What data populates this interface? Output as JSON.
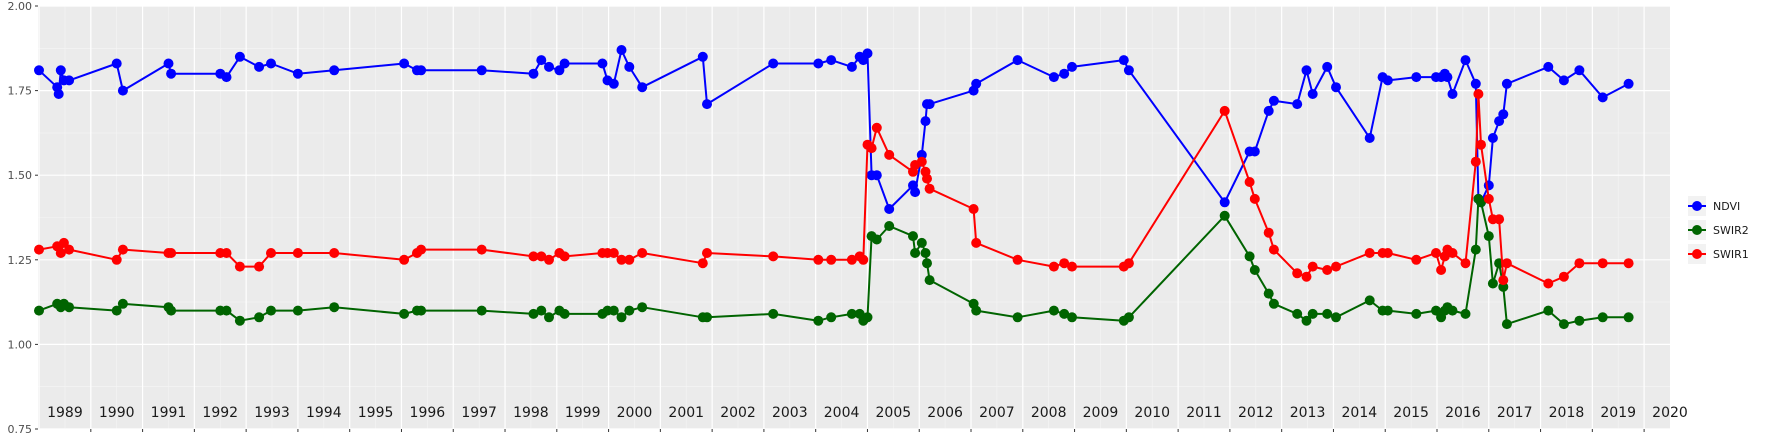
{
  "chart_data": {
    "type": "line",
    "title": "",
    "xlabel": "",
    "ylabel": "",
    "xlim": [
      1988.98,
      2020.5
    ],
    "ylim": [
      0.75,
      2.0
    ],
    "yticks": [
      "0.75",
      "1.00",
      "1.25",
      "1.50",
      "1.75",
      "2.00"
    ],
    "xticks": [
      "1989",
      "1990",
      "1991",
      "1992",
      "1993",
      "1994",
      "1995",
      "1996",
      "1997",
      "1998",
      "1999",
      "2000",
      "2001",
      "2002",
      "2003",
      "2004",
      "2005",
      "2006",
      "2007",
      "2008",
      "2009",
      "2010",
      "2011",
      "2012",
      "2013",
      "2014",
      "2015",
      "2016",
      "2017",
      "2018",
      "2019",
      "2020"
    ],
    "grid": true,
    "legend_position": "right",
    "series": [
      {
        "name": "NDVI",
        "color": "#0000ff",
        "x": [
          1989.0,
          1989.35,
          1989.38,
          1989.42,
          1989.48,
          1989.58,
          1990.5,
          1990.62,
          1991.5,
          1991.55,
          1992.5,
          1992.62,
          1992.88,
          1993.25,
          1993.48,
          1994.0,
          1994.7,
          1996.05,
          1996.3,
          1996.38,
          1997.55,
          1998.55,
          1998.7,
          1998.85,
          1999.05,
          1999.15,
          1999.88,
          1999.98,
          2000.1,
          2000.25,
          2000.4,
          2000.65,
          2001.82,
          2001.9,
          2003.18,
          2004.05,
          2004.3,
          2004.7,
          2004.85,
          2004.92,
          2005.0,
          2005.08,
          2005.18,
          2005.42,
          2005.88,
          2005.92,
          2006.05,
          2006.12,
          2006.15,
          2006.2,
          2007.05,
          2007.1,
          2007.9,
          2008.6,
          2008.8,
          2008.95,
          2009.95,
          2010.05,
          2011.9,
          2012.38,
          2012.48,
          2012.75,
          2012.85,
          2013.3,
          2013.48,
          2013.6,
          2013.88,
          2014.05,
          2014.7,
          2014.95,
          2015.05,
          2015.6,
          2015.98,
          2016.08,
          2016.15,
          2016.2,
          2016.3,
          2016.55,
          2016.75,
          2016.8,
          2016.85,
          2017.0,
          2017.08,
          2017.2,
          2017.28,
          2017.35,
          2018.15,
          2018.45,
          2018.75,
          2019.2,
          2019.7
        ],
        "values": [
          1.81,
          1.76,
          1.74,
          1.81,
          1.78,
          1.78,
          1.83,
          1.75,
          1.83,
          1.8,
          1.8,
          1.79,
          1.85,
          1.82,
          1.83,
          1.8,
          1.81,
          1.83,
          1.81,
          1.81,
          1.81,
          1.8,
          1.84,
          1.82,
          1.81,
          1.83,
          1.83,
          1.78,
          1.77,
          1.87,
          1.82,
          1.76,
          1.85,
          1.71,
          1.83,
          1.83,
          1.84,
          1.82,
          1.85,
          1.84,
          1.86,
          1.5,
          1.5,
          1.4,
          1.47,
          1.45,
          1.56,
          1.66,
          1.71,
          1.71,
          1.75,
          1.77,
          1.84,
          1.79,
          1.8,
          1.82,
          1.84,
          1.81,
          1.42,
          1.57,
          1.57,
          1.69,
          1.72,
          1.71,
          1.81,
          1.74,
          1.82,
          1.76,
          1.61,
          1.79,
          1.78,
          1.79,
          1.79,
          1.79,
          1.8,
          1.79,
          1.74,
          1.84,
          1.77,
          1.43,
          1.42,
          1.47,
          1.61,
          1.66,
          1.68,
          1.77,
          1.82,
          1.78,
          1.81,
          1.73,
          1.77
        ]
      },
      {
        "name": "SWIR2",
        "color": "#006400",
        "x": [
          1989.0,
          1989.35,
          1989.42,
          1989.48,
          1989.58,
          1990.5,
          1990.62,
          1991.5,
          1991.55,
          1992.5,
          1992.62,
          1992.88,
          1993.25,
          1993.48,
          1994.0,
          1994.7,
          1996.05,
          1996.3,
          1996.38,
          1997.55,
          1998.55,
          1998.7,
          1998.85,
          1999.05,
          1999.15,
          1999.88,
          1999.98,
          2000.1,
          2000.25,
          2000.4,
          2000.65,
          2001.82,
          2001.9,
          2003.18,
          2004.05,
          2004.3,
          2004.7,
          2004.85,
          2004.92,
          2005.0,
          2005.08,
          2005.18,
          2005.42,
          2005.88,
          2005.92,
          2006.05,
          2006.12,
          2006.15,
          2006.2,
          2007.05,
          2007.1,
          2007.9,
          2008.6,
          2008.8,
          2008.95,
          2009.95,
          2010.05,
          2011.9,
          2012.38,
          2012.48,
          2012.75,
          2012.85,
          2013.3,
          2013.48,
          2013.6,
          2013.88,
          2014.05,
          2014.7,
          2014.95,
          2015.05,
          2015.6,
          2015.98,
          2016.08,
          2016.15,
          2016.2,
          2016.3,
          2016.55,
          2016.75,
          2016.8,
          2016.85,
          2017.0,
          2017.08,
          2017.2,
          2017.28,
          2017.35,
          2018.15,
          2018.45,
          2018.75,
          2019.2,
          2019.7
        ],
        "values": [
          1.1,
          1.12,
          1.11,
          1.12,
          1.11,
          1.1,
          1.12,
          1.11,
          1.1,
          1.1,
          1.1,
          1.07,
          1.08,
          1.1,
          1.1,
          1.11,
          1.09,
          1.1,
          1.1,
          1.1,
          1.09,
          1.1,
          1.08,
          1.1,
          1.09,
          1.09,
          1.1,
          1.1,
          1.08,
          1.1,
          1.11,
          1.08,
          1.08,
          1.09,
          1.07,
          1.08,
          1.09,
          1.09,
          1.07,
          1.08,
          1.32,
          1.31,
          1.35,
          1.32,
          1.27,
          1.3,
          1.27,
          1.24,
          1.19,
          1.12,
          1.1,
          1.08,
          1.1,
          1.09,
          1.08,
          1.07,
          1.08,
          1.38,
          1.26,
          1.22,
          1.15,
          1.12,
          1.09,
          1.07,
          1.09,
          1.09,
          1.08,
          1.13,
          1.1,
          1.1,
          1.09,
          1.1,
          1.08,
          1.1,
          1.11,
          1.1,
          1.09,
          1.28,
          1.43,
          1.42,
          1.32,
          1.18,
          1.24,
          1.17,
          1.06,
          1.1,
          1.06,
          1.07,
          1.08,
          1.08
        ]
      },
      {
        "name": "SWIR1",
        "color": "#ff0000",
        "x": [
          1989.0,
          1989.35,
          1989.42,
          1989.48,
          1989.58,
          1990.5,
          1990.62,
          1991.5,
          1991.55,
          1992.5,
          1992.62,
          1992.88,
          1993.25,
          1993.48,
          1994.0,
          1994.7,
          1996.05,
          1996.3,
          1996.38,
          1997.55,
          1998.55,
          1998.7,
          1998.85,
          1999.05,
          1999.15,
          1999.88,
          1999.98,
          2000.1,
          2000.25,
          2000.4,
          2000.65,
          2001.82,
          2001.9,
          2003.18,
          2004.05,
          2004.3,
          2004.7,
          2004.85,
          2004.92,
          2005.0,
          2005.08,
          2005.18,
          2005.42,
          2005.88,
          2005.92,
          2006.05,
          2006.12,
          2006.15,
          2006.2,
          2007.05,
          2007.1,
          2007.9,
          2008.6,
          2008.8,
          2008.95,
          2009.95,
          2010.05,
          2011.9,
          2012.38,
          2012.48,
          2012.75,
          2012.85,
          2013.3,
          2013.48,
          2013.6,
          2013.88,
          2014.05,
          2014.7,
          2014.95,
          2015.05,
          2015.6,
          2015.98,
          2016.08,
          2016.15,
          2016.2,
          2016.3,
          2016.55,
          2016.75,
          2016.8,
          2016.85,
          2017.0,
          2017.08,
          2017.2,
          2017.28,
          2017.35,
          2018.15,
          2018.45,
          2018.75,
          2019.2,
          2019.7
        ],
        "values": [
          1.28,
          1.29,
          1.27,
          1.3,
          1.28,
          1.25,
          1.28,
          1.27,
          1.27,
          1.27,
          1.27,
          1.23,
          1.23,
          1.27,
          1.27,
          1.27,
          1.25,
          1.27,
          1.28,
          1.28,
          1.26,
          1.26,
          1.25,
          1.27,
          1.26,
          1.27,
          1.27,
          1.27,
          1.25,
          1.25,
          1.27,
          1.24,
          1.27,
          1.26,
          1.25,
          1.25,
          1.25,
          1.26,
          1.25,
          1.59,
          1.58,
          1.64,
          1.56,
          1.51,
          1.53,
          1.54,
          1.51,
          1.49,
          1.46,
          1.4,
          1.3,
          1.25,
          1.23,
          1.24,
          1.23,
          1.23,
          1.24,
          1.69,
          1.48,
          1.43,
          1.33,
          1.28,
          1.21,
          1.2,
          1.23,
          1.22,
          1.23,
          1.27,
          1.27,
          1.27,
          1.25,
          1.27,
          1.22,
          1.26,
          1.28,
          1.27,
          1.24,
          1.54,
          1.74,
          1.59,
          1.43,
          1.37,
          1.37,
          1.19,
          1.24,
          1.18,
          1.2,
          1.24,
          1.24,
          1.24
        ]
      }
    ]
  }
}
